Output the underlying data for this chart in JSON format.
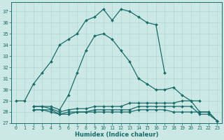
{
  "xlabel": "Humidex (Indice chaleur)",
  "xlim": [
    -0.5,
    23.5
  ],
  "ylim": [
    27,
    37.8
  ],
  "yticks": [
    27,
    28,
    29,
    30,
    31,
    32,
    33,
    34,
    35,
    36,
    37
  ],
  "xticks": [
    0,
    1,
    2,
    3,
    4,
    5,
    6,
    7,
    8,
    9,
    10,
    11,
    12,
    13,
    14,
    15,
    16,
    17,
    18,
    19,
    20,
    21,
    22,
    23
  ],
  "bg_color": "#cce8e4",
  "line_color": "#1a6b6b",
  "grid_color": "#b0d8d4",
  "series": [
    {
      "x": [
        0,
        1,
        2,
        3,
        4,
        5,
        6,
        7,
        8,
        9,
        10,
        11,
        12,
        13,
        14,
        15,
        16,
        17
      ],
      "y": [
        29.0,
        29.0,
        30.5,
        31.5,
        32.5,
        34.0,
        34.5,
        35.0,
        36.2,
        36.5,
        37.2,
        36.2,
        37.2,
        37.0,
        36.5,
        36.0,
        35.8,
        31.5
      ]
    },
    {
      "x": [
        2,
        3,
        4,
        5,
        6,
        7,
        8,
        9,
        10,
        11,
        12,
        13,
        14,
        15,
        16,
        17,
        18,
        19,
        20,
        21
      ],
      "y": [
        28.5,
        28.5,
        28.5,
        28.2,
        29.5,
        31.5,
        33.5,
        34.8,
        35.0,
        34.5,
        33.5,
        32.5,
        31.0,
        30.5,
        30.0,
        30.0,
        30.2,
        29.5,
        29.0,
        29.0
      ]
    },
    {
      "x": [
        2,
        3,
        4,
        5,
        6,
        7,
        8,
        9,
        10,
        11,
        12,
        13,
        14,
        15,
        16,
        17,
        18,
        19,
        20,
        21,
        22,
        23
      ],
      "y": [
        28.5,
        28.5,
        28.3,
        28.0,
        28.2,
        28.3,
        28.3,
        28.5,
        28.5,
        28.5,
        28.5,
        28.8,
        28.8,
        28.8,
        28.8,
        28.8,
        28.8,
        29.0,
        29.0,
        28.0,
        28.0,
        27.2
      ]
    },
    {
      "x": [
        2,
        3,
        4,
        5,
        6,
        7,
        8,
        9,
        10,
        11,
        12,
        13,
        14,
        15,
        16,
        17,
        18,
        19,
        20,
        21,
        22,
        23
      ],
      "y": [
        28.2,
        28.2,
        28.2,
        27.8,
        28.0,
        28.0,
        28.0,
        28.2,
        28.2,
        28.2,
        28.2,
        28.2,
        28.5,
        28.5,
        28.5,
        28.5,
        28.5,
        28.5,
        28.5,
        27.8,
        27.8,
        27.2
      ]
    },
    {
      "x": [
        2,
        3,
        4,
        5,
        6,
        7,
        8,
        9,
        10,
        11,
        12,
        13,
        14,
        15,
        16,
        17,
        18,
        19,
        20,
        21,
        22,
        23
      ],
      "y": [
        28.2,
        28.2,
        28.0,
        27.8,
        27.8,
        28.0,
        28.0,
        28.0,
        28.0,
        28.0,
        28.0,
        28.0,
        28.2,
        28.2,
        28.2,
        28.2,
        28.0,
        28.0,
        28.0,
        28.0,
        28.0,
        27.2
      ]
    }
  ]
}
